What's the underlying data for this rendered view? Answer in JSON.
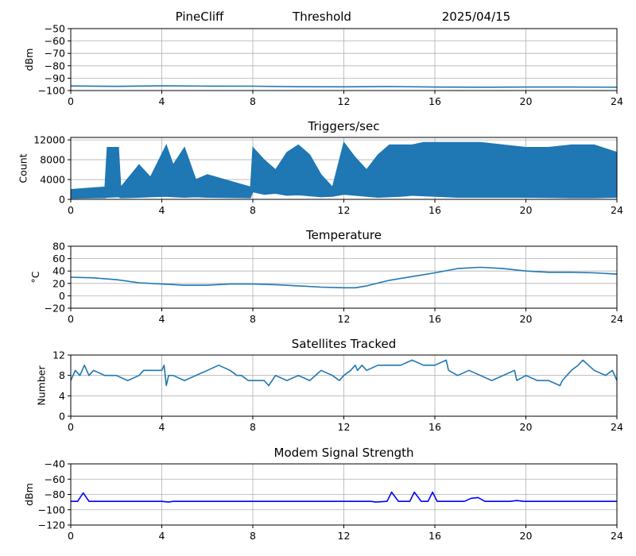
{
  "header": {
    "station": "PineCliff",
    "mode": "Threshold",
    "date": "2025/04/15"
  },
  "chart_data": [
    {
      "type": "line",
      "title": "",
      "xlabel": "",
      "ylabel": "dBm",
      "xlim": [
        0,
        24
      ],
      "ylim": [
        -100,
        -50
      ],
      "xticks": [
        "0",
        "4",
        "8",
        "12",
        "16",
        "20",
        "24"
      ],
      "yticks": [
        "−100",
        "−90",
        "−80",
        "−70",
        "−60",
        "−50"
      ],
      "grid": true,
      "color": "#1f77b4",
      "series": [
        {
          "x": [
            0,
            2,
            4,
            6,
            8,
            10,
            12,
            14,
            16,
            18,
            20,
            22,
            24
          ],
          "values": [
            -96.3,
            -96.6,
            -96.2,
            -96.4,
            -96.5,
            -96.9,
            -97.0,
            -96.7,
            -97.2,
            -97.3,
            -97.2,
            -97.2,
            -97.3
          ]
        }
      ]
    },
    {
      "type": "area",
      "title": "Triggers/sec",
      "xlabel": "",
      "ylabel": "Count",
      "xlim": [
        0,
        24
      ],
      "ylim": [
        0,
        12500
      ],
      "xticks": [
        "0",
        "4",
        "8",
        "12",
        "16",
        "20",
        "24"
      ],
      "yticks": [
        "0",
        "4000",
        "8000",
        "12000"
      ],
      "grid": true,
      "color": "#1f77b4",
      "series": [
        {
          "x": [
            0,
            1.5,
            1.6,
            2.1,
            2.2,
            3.0,
            3.5,
            4.2,
            4.5,
            5.0,
            5.5,
            6.0,
            7.9,
            8.0,
            8.5,
            9.0,
            9.5,
            10.0,
            10.5,
            11.0,
            11.5,
            12.0,
            12.5,
            13.0,
            13.5,
            14.0,
            14.5,
            15.0,
            15.5,
            16.0,
            16.5,
            17.0,
            18.0,
            19.0,
            20.0,
            21.0,
            22.0,
            23.0,
            24.0
          ],
          "lower": [
            200,
            300,
            400,
            500,
            300,
            400,
            500,
            600,
            500,
            400,
            500,
            400,
            300,
            1500,
            1000,
            1200,
            800,
            900,
            700,
            500,
            600,
            1000,
            800,
            600,
            400,
            500,
            600,
            800,
            700,
            600,
            500,
            400,
            400,
            400,
            400,
            350,
            300,
            300,
            400
          ],
          "upper": [
            2000,
            2500,
            10500,
            10500,
            2500,
            7000,
            4500,
            11000,
            7000,
            10500,
            4000,
            5000,
            2500,
            10500,
            8000,
            6000,
            9500,
            11000,
            9000,
            5000,
            2500,
            11500,
            8500,
            6000,
            9000,
            11000,
            11000,
            11000,
            11500,
            11500,
            11500,
            11500,
            11500,
            11000,
            10500,
            10500,
            11000,
            11000,
            9500
          ]
        }
      ]
    },
    {
      "type": "line",
      "title": "Temperature",
      "xlabel": "",
      "ylabel": "°C",
      "xlim": [
        0,
        24
      ],
      "ylim": [
        -20,
        80
      ],
      "xticks": [
        "0",
        "4",
        "8",
        "12",
        "16",
        "20",
        "24"
      ],
      "yticks": [
        "−20",
        "0",
        "20",
        "40",
        "60",
        "80"
      ],
      "grid": true,
      "color": "#1f77b4",
      "series": [
        {
          "x": [
            0,
            1,
            2,
            3,
            4,
            5,
            6,
            7,
            8,
            9,
            10,
            11,
            12,
            12.5,
            13,
            14,
            15,
            16,
            17,
            18,
            19,
            20,
            21,
            22,
            23,
            24
          ],
          "values": [
            30,
            29,
            26,
            21,
            19,
            17,
            17,
            19,
            19,
            18,
            16,
            14,
            13,
            13,
            16,
            25,
            31,
            37,
            44,
            46,
            44,
            40,
            38,
            38,
            37,
            35
          ]
        }
      ]
    },
    {
      "type": "line",
      "title": "Satellites Tracked",
      "xlabel": "",
      "ylabel": "Number",
      "xlim": [
        0,
        24
      ],
      "ylim": [
        0,
        12
      ],
      "xticks": [
        "0",
        "4",
        "8",
        "12",
        "16",
        "20",
        "24"
      ],
      "yticks": [
        "0",
        "4",
        "8",
        "12"
      ],
      "grid": true,
      "color": "#1f77b4",
      "series": [
        {
          "x": [
            0,
            0.1,
            0.2,
            0.4,
            0.5,
            0.6,
            0.7,
            0.8,
            1.0,
            1.5,
            2.0,
            2.5,
            3.0,
            3.2,
            4.0,
            4.1,
            4.2,
            4.3,
            4.5,
            5.0,
            5.5,
            6.0,
            6.5,
            7.0,
            7.3,
            7.5,
            7.8,
            8.0,
            8.5,
            8.7,
            9.0,
            9.5,
            10.0,
            10.5,
            11.0,
            11.5,
            11.8,
            12.0,
            12.3,
            12.5,
            12.6,
            12.8,
            13.0,
            13.5,
            14.0,
            14.5,
            15.0,
            15.5,
            16.0,
            16.5,
            16.6,
            17.0,
            17.5,
            18.0,
            18.5,
            19.0,
            19.5,
            19.6,
            20.0,
            20.5,
            21.0,
            21.5,
            21.6,
            22.0,
            22.3,
            22.5,
            23.0,
            23.5,
            23.8,
            24.0
          ],
          "values": [
            7,
            8,
            9,
            8,
            9,
            10,
            9,
            8,
            9,
            8,
            8,
            7,
            8,
            9,
            9,
            10,
            6,
            8,
            8,
            7,
            8,
            9,
            10,
            9,
            8,
            8,
            7,
            7,
            7,
            6,
            8,
            7,
            8,
            7,
            9,
            8,
            7,
            8,
            9,
            10,
            9,
            10,
            9,
            10,
            10,
            10,
            11,
            10,
            10,
            11,
            9,
            8,
            9,
            8,
            7,
            8,
            9,
            7,
            8,
            7,
            7,
            6,
            7,
            9,
            10,
            11,
            9,
            8,
            9,
            7
          ]
        }
      ]
    },
    {
      "type": "line",
      "title": "Modem Signal Strength",
      "xlabel": "",
      "ylabel": "dBm",
      "xlim": [
        0,
        24
      ],
      "ylim": [
        -120,
        -40
      ],
      "xticks": [
        "0",
        "4",
        "8",
        "12",
        "16",
        "20",
        "24"
      ],
      "yticks": [
        "−120",
        "−100",
        "−80",
        "−60",
        "−40"
      ],
      "grid": true,
      "color": "#0000ff",
      "series": [
        {
          "x": [
            0,
            0.3,
            0.55,
            0.8,
            4.0,
            4.3,
            4.5,
            13.2,
            13.4,
            13.9,
            14.1,
            14.4,
            14.9,
            15.1,
            15.4,
            15.7,
            15.9,
            16.1,
            17.3,
            17.6,
            17.9,
            18.2,
            19.3,
            19.6,
            19.9,
            24.0
          ],
          "values": [
            -89,
            -89,
            -78,
            -89,
            -89,
            -90,
            -89,
            -89,
            -90,
            -89,
            -77,
            -89,
            -89,
            -77,
            -89,
            -89,
            -77,
            -89,
            -89,
            -85,
            -84,
            -89,
            -89,
            -88,
            -89,
            -89
          ]
        }
      ]
    }
  ]
}
